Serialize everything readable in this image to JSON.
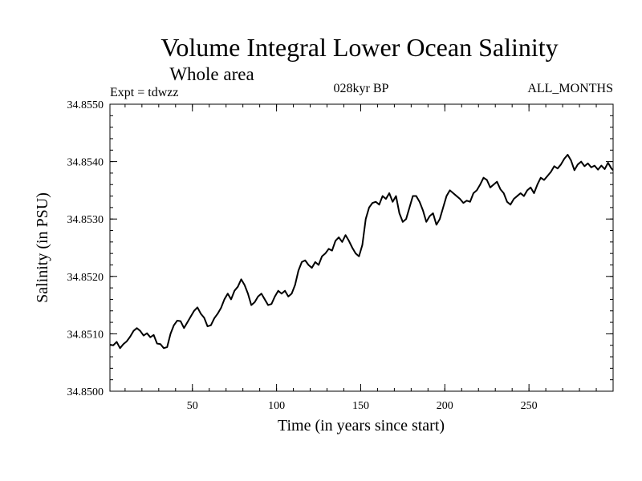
{
  "chart_data": {
    "type": "line",
    "title": "Volume Integral Lower Ocean Salinity",
    "subtitle": "Whole area",
    "annotations": {
      "left": "Expt = tdwzz",
      "center": "028kyr BP",
      "right": "ALL_MONTHS"
    },
    "xlabel": "Time (in years since start)",
    "ylabel": "Salinity (in PSU)",
    "xlim": [
      1,
      300
    ],
    "ylim": [
      34.85,
      34.855
    ],
    "x_ticks": [
      50,
      100,
      150,
      200,
      250
    ],
    "x_tick_labels": [
      "50",
      "100",
      "150",
      "200",
      "250"
    ],
    "y_ticks": [
      34.85,
      34.851,
      34.852,
      34.853,
      34.854,
      34.855
    ],
    "y_tick_labels": [
      "34.8500",
      "34.8510",
      "34.8520",
      "34.8530",
      "34.8540",
      "34.8550"
    ],
    "grid": false,
    "legend": "none",
    "line_color": "#000000",
    "series": [
      {
        "x": [
          1,
          3,
          5,
          7,
          9,
          11,
          13,
          15,
          17,
          19,
          21,
          23,
          25,
          27,
          29,
          31,
          33,
          35,
          37,
          39,
          41,
          43,
          45,
          47,
          49,
          51,
          53,
          55,
          57,
          59,
          61,
          63,
          65,
          67,
          69,
          71,
          73,
          75,
          77,
          79,
          81,
          83,
          85,
          87,
          89,
          91,
          93,
          95,
          97,
          99,
          101,
          103,
          105,
          107,
          109,
          111,
          113,
          115,
          117,
          119,
          121,
          123,
          125,
          127,
          129,
          131,
          133,
          135,
          137,
          139,
          141,
          143,
          145,
          147,
          149,
          151,
          153,
          155,
          157,
          159,
          161,
          163,
          165,
          167,
          169,
          171,
          173,
          175,
          177,
          179,
          181,
          183,
          185,
          187,
          189,
          191,
          193,
          195,
          197,
          199,
          201,
          203,
          205,
          207,
          209,
          211,
          213,
          215,
          217,
          219,
          221,
          223,
          225,
          227,
          229,
          231,
          233,
          235,
          237,
          239,
          241,
          243,
          245,
          247,
          249,
          251,
          253,
          255,
          257,
          259,
          261,
          263,
          265,
          267,
          269,
          271,
          273,
          275,
          277,
          279,
          281,
          283,
          285,
          287,
          289,
          291,
          293,
          295,
          297,
          299,
          300
        ],
        "values": [
          34.85081,
          34.8508,
          34.85086,
          34.85075,
          34.85082,
          34.85087,
          34.85095,
          34.85105,
          34.8511,
          34.85105,
          34.85097,
          34.85101,
          34.85094,
          34.85098,
          34.85083,
          34.85082,
          34.85075,
          34.85077,
          34.851,
          34.85115,
          34.85123,
          34.85122,
          34.8511,
          34.8512,
          34.8513,
          34.8514,
          34.85146,
          34.85135,
          34.85128,
          34.85113,
          34.85115,
          34.85127,
          34.85135,
          34.85145,
          34.8516,
          34.8517,
          34.8516,
          34.85175,
          34.85182,
          34.85195,
          34.85185,
          34.8517,
          34.8515,
          34.85155,
          34.85165,
          34.8517,
          34.8516,
          34.8515,
          34.85152,
          34.85165,
          34.85175,
          34.8517,
          34.85175,
          34.85165,
          34.8517,
          34.85185,
          34.8521,
          34.85225,
          34.85228,
          34.8522,
          34.85215,
          34.85225,
          34.8522,
          34.85235,
          34.8524,
          34.85248,
          34.85245,
          34.85262,
          34.85268,
          34.8526,
          34.85272,
          34.85262,
          34.8525,
          34.8524,
          34.85235,
          34.85255,
          34.853,
          34.8532,
          34.85328,
          34.8533,
          34.85325,
          34.8534,
          34.85335,
          34.85345,
          34.8533,
          34.8534,
          34.8531,
          34.85295,
          34.853,
          34.8532,
          34.8534,
          34.8534,
          34.8533,
          34.85315,
          34.85295,
          34.85305,
          34.8531,
          34.8529,
          34.853,
          34.8532,
          34.8534,
          34.8535,
          34.85345,
          34.8534,
          34.85335,
          34.85328,
          34.85332,
          34.8533,
          34.85345,
          34.8535,
          34.8536,
          34.85372,
          34.85368,
          34.85355,
          34.8536,
          34.85365,
          34.85352,
          34.85345,
          34.8533,
          34.85325,
          34.85335,
          34.8534,
          34.85345,
          34.8534,
          34.8535,
          34.85355,
          34.85345,
          34.8536,
          34.85372,
          34.85368,
          34.85375,
          34.85382,
          34.85392,
          34.85388,
          34.85395,
          34.85405,
          34.85412,
          34.85402,
          34.85385,
          34.85395,
          34.854,
          34.85392,
          34.85397,
          34.8539,
          34.85393,
          34.85386,
          34.85393,
          34.85387,
          34.85398,
          34.85388,
          34.85385
        ]
      }
    ]
  }
}
